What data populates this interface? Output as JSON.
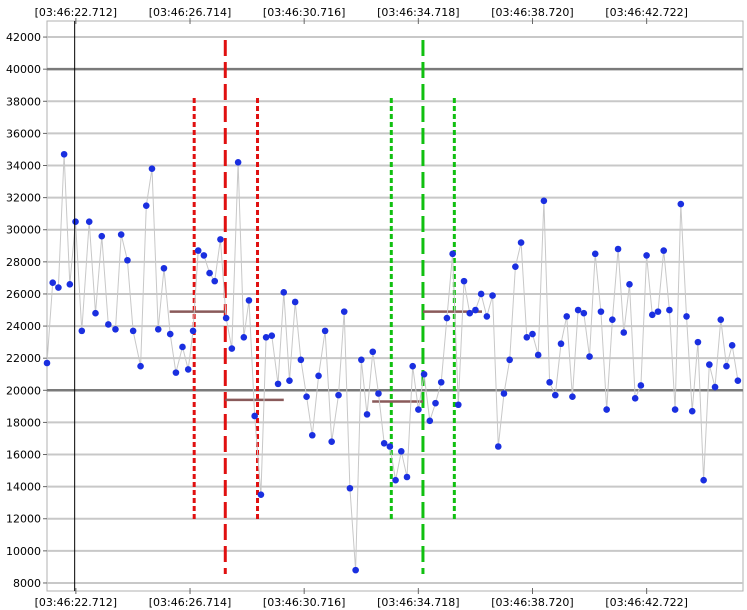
{
  "chart_data": {
    "type": "scatter",
    "title": "",
    "xlabel": "",
    "ylabel": "",
    "x_tick_labels": [
      "[03:46:22.712]",
      "[03:46:26.714]",
      "[03:46:30.716]",
      "[03:46:34.718]",
      "[03:46:38.720]",
      "[03:46:42.722]"
    ],
    "x_tick_values": [
      22.712,
      26.714,
      30.716,
      34.718,
      38.72,
      42.722
    ],
    "xlim": [
      21.7,
      46.1
    ],
    "y_tick_values": [
      8000,
      10000,
      12000,
      14000,
      16000,
      18000,
      20000,
      22000,
      24000,
      26000,
      28000,
      30000,
      32000,
      34000,
      36000,
      38000,
      40000,
      42000
    ],
    "y_tick_labels": [
      "8000",
      "10000",
      "12000",
      "14000",
      "16000",
      "18000",
      "20000",
      "22000",
      "24000",
      "26000",
      "28000",
      "30000",
      "32000",
      "34000",
      "36000",
      "38000",
      "40000",
      "42000"
    ],
    "ylim": [
      7500,
      43000
    ],
    "grid": true,
    "threshold_lines": [
      20000,
      40000
    ],
    "cursor_x": 22.67,
    "series": [
      {
        "color": "#1a2fe0",
        "line_color": "#c8c8c8",
        "x": [
          21.7,
          21.9,
          22.1,
          22.3,
          22.5,
          22.7,
          22.92,
          23.18,
          23.4,
          23.62,
          23.85,
          24.1,
          24.3,
          24.52,
          24.72,
          24.98,
          25.18,
          25.38,
          25.6,
          25.8,
          26.02,
          26.22,
          26.45,
          26.65,
          26.82,
          27.0,
          27.2,
          27.4,
          27.58,
          27.78,
          27.98,
          28.18,
          28.4,
          28.6,
          28.78,
          28.98,
          29.2,
          29.38,
          29.58,
          29.8,
          30.0,
          30.2,
          30.4,
          30.6,
          30.8,
          31.0,
          31.22,
          31.45,
          31.68,
          31.92,
          32.12,
          32.32,
          32.52,
          32.72,
          32.92,
          33.12,
          33.32,
          33.52,
          33.72,
          33.92,
          34.12,
          34.32,
          34.52,
          34.72,
          34.92,
          35.12,
          35.32,
          35.52,
          35.72,
          35.92,
          36.12,
          36.32,
          36.52,
          36.72,
          36.92,
          37.12,
          37.32,
          37.52,
          37.72,
          37.92,
          38.12,
          38.32,
          38.52,
          38.72,
          38.92,
          39.12,
          39.32,
          39.52,
          39.72,
          39.92,
          40.12,
          40.32,
          40.52,
          40.72,
          40.92,
          41.12,
          41.32,
          41.52,
          41.72,
          41.92,
          42.12,
          42.32,
          42.52,
          42.72,
          42.92,
          43.12,
          43.32,
          43.52,
          43.72,
          43.92,
          44.12,
          44.32,
          44.52,
          44.72,
          44.92,
          45.12,
          45.32,
          45.52,
          45.72,
          45.92
        ],
        "y": [
          21700,
          26700,
          26400,
          34700,
          26600,
          30500,
          23700,
          30500,
          24800,
          29600,
          24100,
          23800,
          29700,
          28100,
          23700,
          21500,
          31500,
          33800,
          23800,
          27600,
          23500,
          21100,
          22700,
          21300,
          23700,
          28700,
          28400,
          27300,
          26800,
          29400,
          24500,
          22600,
          34200,
          23300,
          25600,
          18400,
          13500,
          23300,
          23400,
          20400,
          26100,
          20600,
          25500,
          21900,
          19600,
          17200,
          20900,
          23700,
          16800,
          19700,
          24900,
          13900,
          8800,
          21900,
          18500,
          22400,
          19800,
          16700,
          16500,
          14400,
          16200,
          14600,
          21500,
          18800,
          21000,
          18100,
          19200,
          20500,
          24500,
          28500,
          19100,
          26800,
          24800,
          25000,
          26000,
          24600,
          25900,
          16500,
          19800,
          21900,
          27700,
          29200,
          23300,
          23500,
          22200,
          31800,
          20500,
          19700,
          22900,
          24600,
          19600,
          25000,
          24800,
          22100,
          28500,
          24900,
          18800,
          24400,
          28800,
          23600,
          26600,
          19500,
          20300,
          28400,
          24700,
          24900,
          28700,
          25000,
          18800,
          31600,
          24600,
          18700,
          23000,
          14400,
          21600,
          20200,
          24400,
          21500,
          22800,
          20600
        ]
      }
    ],
    "overlays": {
      "red_dashed_center_x": 27.95,
      "red_dotted_x": [
        26.86,
        29.08
      ],
      "green_dashed_center_x": 34.88,
      "green_dotted_x": [
        33.77,
        35.98
      ],
      "level_segments": [
        {
          "x": [
            26.0,
            27.95
          ],
          "y": 24900
        },
        {
          "x": [
            27.95,
            30.0
          ],
          "y": 19400
        },
        {
          "x": [
            33.1,
            34.88
          ],
          "y": 19300
        },
        {
          "x": [
            34.88,
            36.95
          ],
          "y": 24900
        }
      ]
    }
  }
}
